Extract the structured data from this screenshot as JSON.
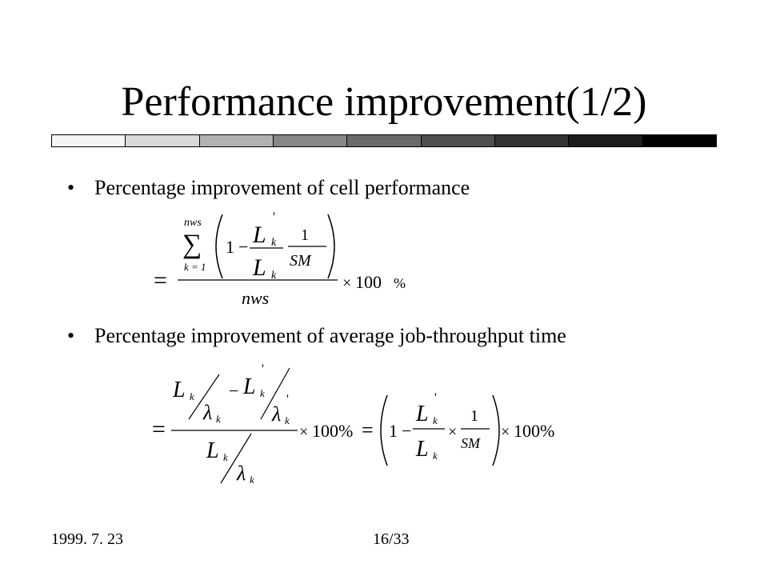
{
  "slide": {
    "title": "Performance improvement(1/2)"
  },
  "bar": {
    "segment_colors": [
      "#f4f4f4",
      "#d9d9d9",
      "#b2b2b2",
      "#878787",
      "#6a6a6a",
      "#4e4e4e",
      "#333333",
      "#1c1c1c",
      "#000000"
    ]
  },
  "bullets": [
    {
      "marker": "•",
      "text": "Percentage improvement of cell performance"
    },
    {
      "marker": "•",
      "text": "Percentage improvement of average job-throughput time"
    }
  ],
  "formula1": {
    "equals": "=",
    "sum": "∑",
    "upper_limit": "nws",
    "lower_limit": "k = 1",
    "one": "1",
    "minus": "−",
    "L": "L",
    "sub_k": "k",
    "prime": "'",
    "SM": "SM",
    "denominator": "nws",
    "times": "×",
    "hundred": "100",
    "percent": "%"
  },
  "formula2": {
    "equals": "=",
    "L": "L",
    "sub_k": "k",
    "prime": "'",
    "lambda": "λ",
    "minus": "−",
    "one": "1",
    "SM": "SM",
    "times": "×",
    "hundred_percent": "100%"
  },
  "footer": {
    "date": "1999. 7. 23",
    "page": "16/33"
  }
}
